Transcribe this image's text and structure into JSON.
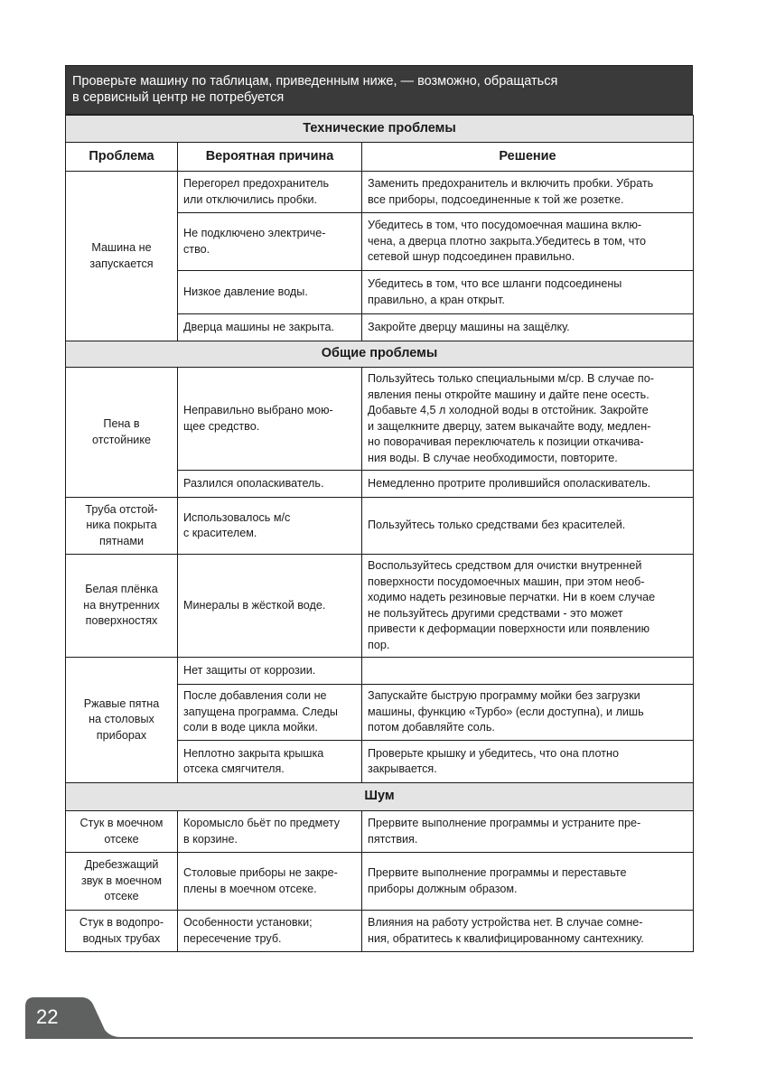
{
  "intro": "Проверьте машину по таблицам, приведенным ниже, — возможно, обращаться\nв сервисный центр не потребуется",
  "columns": {
    "problem": "Проблема",
    "cause": "Вероятная причина",
    "solution": "Решение"
  },
  "sections": [
    {
      "title": "Технические проблемы",
      "groups": [
        {
          "problem": "Машина не\nзапускается",
          "rows": [
            {
              "cause": "Перегорел предохранитель\nили отключились пробки.",
              "solution": "Заменить предохранитель и включить пробки. Убрать\nвсе приборы, подсоединенные к той же розетке."
            },
            {
              "cause": "Не подключено электриче-\nство.",
              "solution": "Убедитесь в том, что посудомоечная машина вклю-\nчена, а дверца плотно закрыта.Убедитесь в том, что\nсетевой шнур подсоединен правильно."
            },
            {
              "cause": "Низкое давление воды.",
              "solution": "Убедитесь в том, что все шланги подсоединены\nправильно, а кран открыт."
            },
            {
              "cause": "Дверца машины не закрыта.",
              "solution": "Закройте дверцу машины на защёлку."
            }
          ]
        }
      ]
    },
    {
      "title": "Общие проблемы",
      "groups": [
        {
          "problem": "Пена в\nотстойнике",
          "rows": [
            {
              "cause": "Неправильно выбрано мою-\nщее средство.",
              "solution": "Пользуйтесь только специальными м/ср. В случае по-\nявления пены откройте машину и дайте пене осесть.\nДобавьте 4,5 л холодной воды в отстойник. Закройте\nи защелкните дверцу, затем выкачайте воду, медлен-\nно поворачивая переключатель к позиции откачива-\nния воды. В случае необходимости, повторите."
            },
            {
              "cause": "Разлился ополаскиватель.",
              "solution": "Немедленно протрите пролившийся ополаскиватель."
            }
          ]
        },
        {
          "problem": "Труба отстой-\nника покрыта\nпятнами",
          "rows": [
            {
              "cause": "Использовалось м/с\nс красителем.",
              "solution": "Пользуйтесь только средствами без красителей."
            }
          ]
        },
        {
          "problem": "Белая плёнка\nна внутренних\nповерхностях",
          "rows": [
            {
              "cause": "Минералы в жёсткой воде.",
              "solution": "Воспользуйтесь средством для очистки внутренней\nповерхности посудомоечных машин, при этом необ-\nходимо надеть резиновые перчатки. Ни в коем случае\nне пользуйтесь другими средствами - это может\nпривести к деформации поверхности или появлению\nпор."
            }
          ]
        },
        {
          "problem": "Ржавые пятна\nна столовых\nприборах",
          "rows": [
            {
              "cause": "Нет защиты от коррозии.",
              "solution": ""
            },
            {
              "cause": "После добавления соли не\nзапущена программа. Следы\nсоли в воде цикла мойки.",
              "solution": "Запускайте быструю программу мойки без загрузки\nмашины, функцию «Турбо» (если доступна), и лишь\nпотом добавляйте соль."
            },
            {
              "cause": "Неплотно закрыта крышка\nотсека смягчителя.",
              "solution": "Проверьте крышку и убедитесь, что она плотно\nзакрывается."
            }
          ]
        }
      ]
    },
    {
      "title": "Шум",
      "groups": [
        {
          "problem": "Стук в моечном\nотсеке",
          "rows": [
            {
              "cause": "Коромысло бьёт по предмету\nв корзине.",
              "solution": "Прервите выполнение программы и устраните пре-\nпятствия."
            }
          ]
        },
        {
          "problem": "Дребезжащий\nзвук в моечном\nотсеке",
          "rows": [
            {
              "cause": "Столовые приборы не закре-\nплены в моечном отсеке.",
              "solution": "Прервите выполнение программы и переставьте\nприборы должным образом."
            }
          ]
        },
        {
          "problem": "Стук в водопро-\nводных трубах",
          "rows": [
            {
              "cause": "Особенности установки;\nпересечение труб.",
              "solution": "Влияния на работу устройства нет. В случае сомне-\nния, обратитесь к квалифицированному сантехнику."
            }
          ]
        }
      ]
    }
  ],
  "page_number": "22"
}
